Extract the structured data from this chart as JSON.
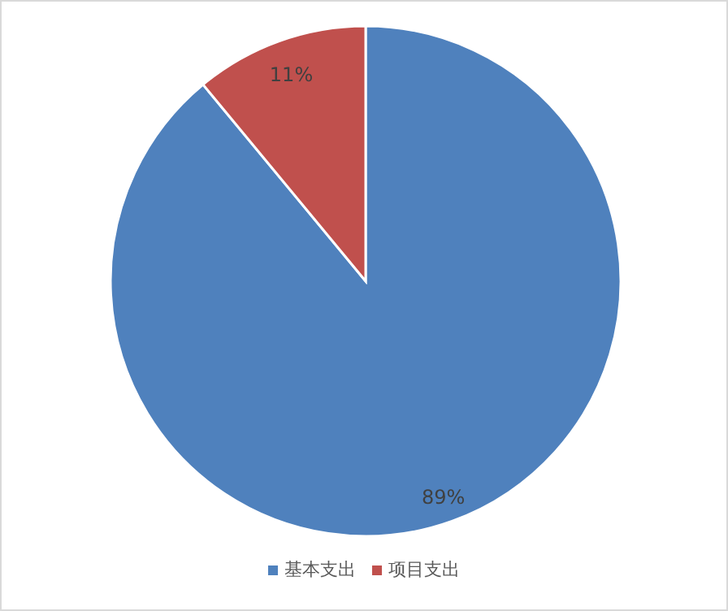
{
  "chart_data": {
    "type": "pie",
    "categories": [
      "基本支出",
      "项目支出"
    ],
    "values": [
      89,
      11
    ],
    "colors": [
      "#4f81bd",
      "#c0504d"
    ],
    "value_labels": [
      "89%",
      "11%"
    ],
    "legend": "bottom"
  }
}
